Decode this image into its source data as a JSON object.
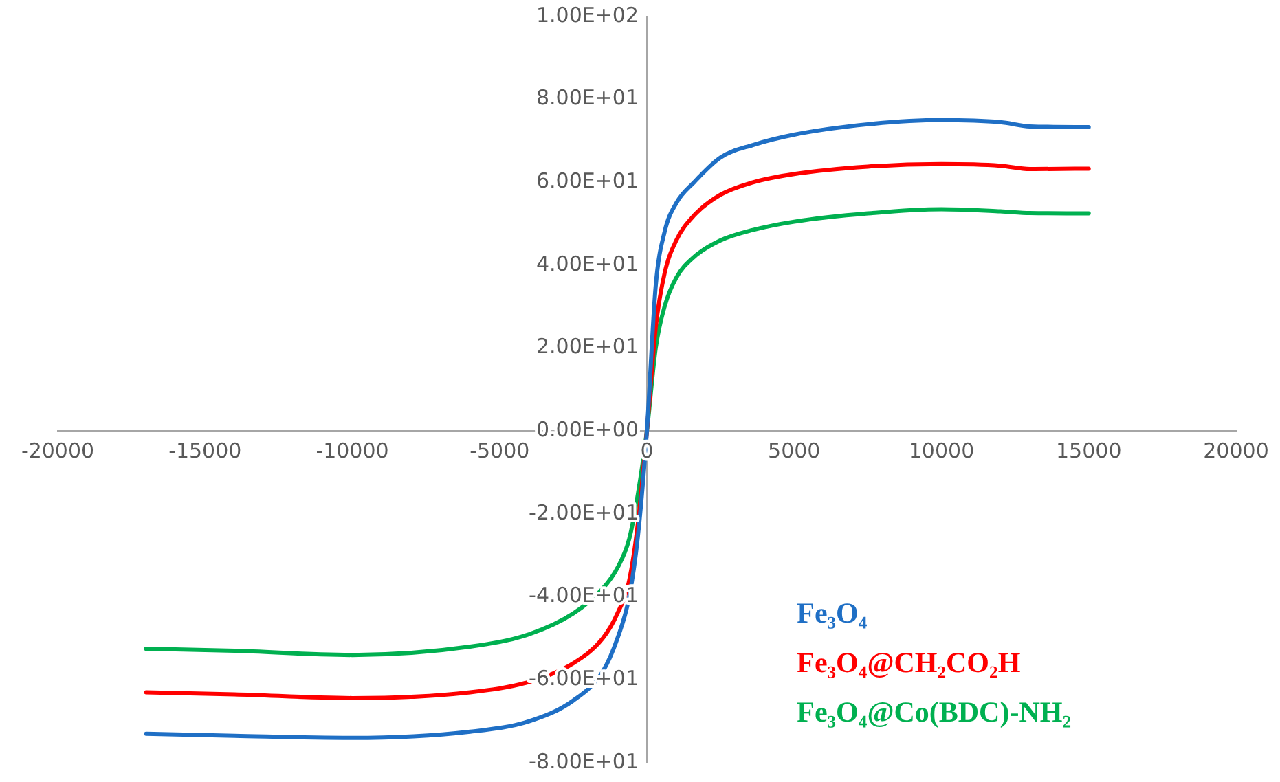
{
  "chart_data": {
    "type": "line",
    "xlim": [
      -20000,
      20000
    ],
    "xticks": [
      -20000,
      -15000,
      -10000,
      -5000,
      0,
      5000,
      10000,
      15000,
      20000
    ],
    "ylim": [
      -80,
      100
    ],
    "yticks": [
      {
        "value": -80,
        "label": "-8.00E+01"
      },
      {
        "value": -60,
        "label": "-6.00E+01"
      },
      {
        "value": -40,
        "label": "-4.00E+01"
      },
      {
        "value": -20,
        "label": "-2.00E+01"
      },
      {
        "value": 0,
        "label": "0.00E+00"
      },
      {
        "value": 20,
        "label": "2.00E+01"
      },
      {
        "value": 40,
        "label": "4.00E+01"
      },
      {
        "value": 60,
        "label": "6.00E+01"
      },
      {
        "value": 80,
        "label": "8.00E+01"
      },
      {
        "value": 100,
        "label": "1.00E+02"
      }
    ],
    "grid": false,
    "legend": "bottom right",
    "marker": "none",
    "line_style": "solid",
    "x": [
      -17000,
      -14000,
      -10000,
      -6000,
      -4000,
      -2500,
      -1500,
      -1000,
      -600,
      -300,
      0,
      300,
      600,
      1000,
      1600,
      2500,
      3600,
      5000,
      7500,
      10000,
      12000,
      13000,
      15000
    ],
    "series": [
      {
        "name": "Fe₃O₄",
        "color": "#1f6fc5",
        "values": [
          -73,
          -73.5,
          -74,
          -72.5,
          -70,
          -65,
          -58,
          -50,
          -40,
          -25,
          0,
          35,
          48,
          55,
          60,
          66,
          69,
          71.5,
          74,
          75,
          74.5,
          73.5,
          73.3
        ]
      },
      {
        "name": "Fe₃O₄@CH₂CO₂H",
        "color": "#ff0000",
        "values": [
          -63,
          -63.5,
          -64.4,
          -63,
          -60.5,
          -56,
          -50,
          -44,
          -36,
          -22,
          0,
          25,
          38,
          46,
          52,
          57,
          60,
          62,
          63.8,
          64.4,
          64,
          63.2,
          63.3
        ]
      },
      {
        "name": "Fe₃O₄@Co(BDC)-NH₂",
        "color": "#00b050",
        "values": [
          -52.5,
          -53,
          -54,
          -52,
          -49,
          -44,
          -38,
          -33,
          -26,
          -15,
          0,
          20,
          30,
          37,
          42,
          46,
          48.5,
          50.5,
          52.5,
          53.5,
          53,
          52.6,
          52.5
        ]
      }
    ]
  }
}
